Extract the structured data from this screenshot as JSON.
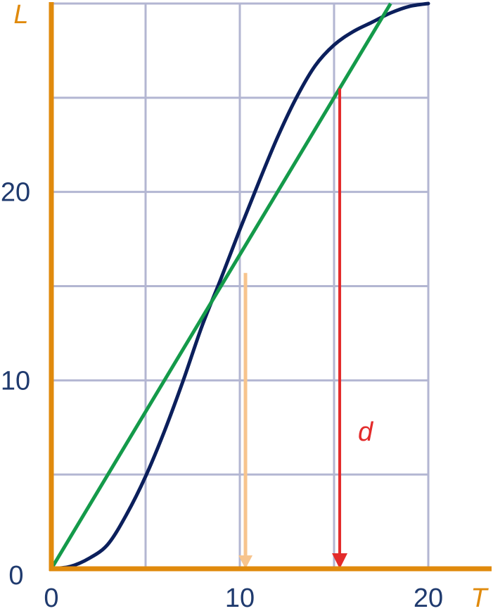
{
  "chart_data": {
    "type": "line",
    "xlabel": "T",
    "ylabel": "L",
    "xlim": [
      0,
      20
    ],
    "ylim": [
      0,
      30
    ],
    "x_ticks": [
      "0",
      "10",
      "20"
    ],
    "y_ticks": [
      "0",
      "10",
      "20"
    ],
    "grid": true,
    "grid_step": 5,
    "series": [
      {
        "kind": "curve",
        "color": "#0b1f5c",
        "points": [
          [
            0,
            0
          ],
          [
            1,
            0.12
          ],
          [
            2,
            0.55
          ],
          [
            3,
            1.3
          ],
          [
            4,
            2.9
          ],
          [
            5,
            4.9
          ],
          [
            6,
            7.3
          ],
          [
            7,
            10.0
          ],
          [
            8,
            12.9
          ],
          [
            9,
            15.4
          ],
          [
            10,
            18.0
          ],
          [
            11,
            20.5
          ],
          [
            12,
            22.9
          ],
          [
            13,
            25.0
          ],
          [
            14,
            26.7
          ],
          [
            15,
            27.8
          ],
          [
            16,
            28.5
          ],
          [
            17,
            29.0
          ],
          [
            18,
            29.5
          ],
          [
            19,
            29.85
          ],
          [
            20,
            30
          ]
        ]
      },
      {
        "kind": "tangent",
        "color": "#149a4a",
        "points": [
          [
            0,
            0
          ],
          [
            18,
            30
          ]
        ]
      }
    ],
    "arrows": [
      {
        "color": "#f7c48d",
        "x": 10.3,
        "y_from": 15.7,
        "y_to": 0
      },
      {
        "color": "#e32b2b",
        "x": 15.3,
        "y_from": 25.5,
        "y_to": 0,
        "label": "d"
      }
    ],
    "colors": {
      "axes": "#e08a0c",
      "grid": "#b3b6d2",
      "ticks": "#1f3a6e"
    }
  }
}
